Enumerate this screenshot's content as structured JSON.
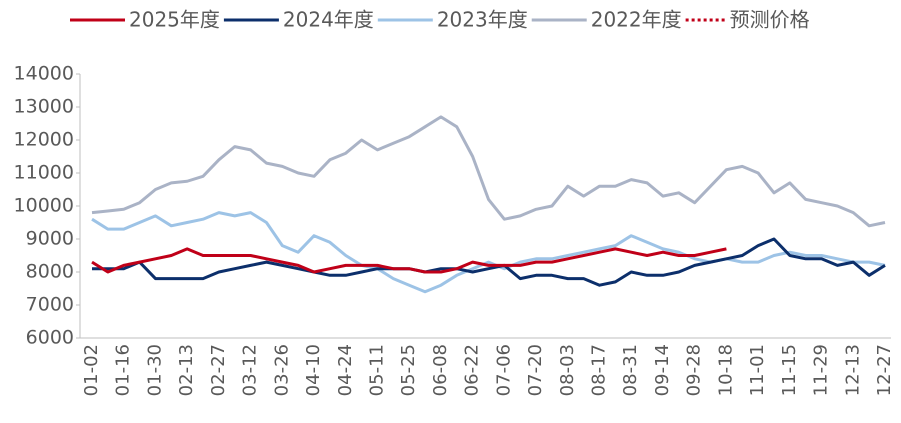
{
  "chart_data": {
    "type": "line",
    "categories": [
      "01-02",
      null,
      "01-16",
      null,
      "01-30",
      null,
      "02-13",
      null,
      "02-27",
      null,
      "03-12",
      null,
      "03-26",
      null,
      "04-10",
      null,
      "04-24",
      null,
      "05-11",
      null,
      "05-25",
      null,
      "06-08",
      null,
      "06-22",
      null,
      "07-06",
      null,
      "07-20",
      null,
      "08-03",
      null,
      "08-17",
      null,
      "08-31",
      null,
      "09-14",
      null,
      "09-28",
      null,
      "10-18",
      null,
      "11-01",
      null,
      "11-15",
      null,
      "11-29",
      null,
      "12-13",
      null,
      "12-27"
    ],
    "series": [
      {
        "name": "2025年度",
        "color": "#c00018",
        "style": "solid",
        "values": [
          8300,
          8000,
          8200,
          8300,
          8400,
          8500,
          8700,
          8500,
          8500,
          8500,
          8500,
          8400,
          8300,
          8200,
          8000,
          8100,
          8200,
          8200,
          8200,
          8100,
          8100,
          8000,
          8000,
          8100,
          8300,
          8200,
          8200,
          8200,
          8300,
          8300,
          8400,
          8500,
          8600,
          8700,
          8600,
          8500,
          8600,
          8500,
          8500,
          8600,
          8700,
          null,
          null,
          null,
          null,
          null,
          null,
          null,
          null,
          null,
          null
        ]
      },
      {
        "name": "2024年度",
        "color": "#0c2f6b",
        "style": "solid",
        "values": [
          8100,
          8100,
          8100,
          8300,
          7800,
          7800,
          7800,
          7800,
          8000,
          8100,
          8200,
          8300,
          8200,
          8100,
          8000,
          7900,
          7900,
          8000,
          8100,
          8100,
          8100,
          8000,
          8100,
          8100,
          8000,
          8100,
          8200,
          7800,
          7900,
          7900,
          7800,
          7800,
          7600,
          7700,
          8000,
          7900,
          7900,
          8000,
          8200,
          8300,
          8400,
          8500,
          8800,
          9000,
          8500,
          8400,
          8400,
          8200,
          8300,
          7900,
          8200
        ]
      },
      {
        "name": "2023年度",
        "color": "#9dc3e6",
        "style": "solid",
        "values": [
          9600,
          9300,
          9300,
          9500,
          9700,
          9400,
          9500,
          9600,
          9800,
          9700,
          9800,
          9500,
          8800,
          8600,
          9100,
          8900,
          8500,
          8200,
          8100,
          7800,
          7600,
          7400,
          7600,
          7900,
          8100,
          8300,
          8100,
          8300,
          8400,
          8400,
          8500,
          8600,
          8700,
          8800,
          9100,
          8900,
          8700,
          8600,
          8400,
          8300,
          8400,
          8300,
          8300,
          8500,
          8600,
          8500,
          8500,
          8400,
          8300,
          8300,
          8200
        ]
      },
      {
        "name": "2022年度",
        "color": "#aab3c6",
        "style": "solid",
        "values": [
          9800,
          9850,
          9900,
          10100,
          10500,
          10700,
          10750,
          10900,
          11400,
          11800,
          11700,
          11300,
          11200,
          11000,
          10900,
          11400,
          11600,
          12000,
          11700,
          11900,
          12100,
          12400,
          12700,
          12400,
          11500,
          10200,
          9600,
          9700,
          9900,
          10000,
          10600,
          10300,
          10600,
          10600,
          10800,
          10700,
          10300,
          10400,
          10100,
          10600,
          11100,
          11200,
          11000,
          10400,
          10700,
          10200,
          10100,
          10000,
          9800,
          9400,
          9500
        ]
      },
      {
        "name": "预测价格",
        "color": "#c00018",
        "style": "dotted",
        "values": [
          null,
          null,
          null,
          null,
          null,
          null,
          null,
          null,
          null,
          null,
          null,
          null,
          null,
          null,
          null,
          null,
          null,
          null,
          null,
          null,
          null,
          null,
          null,
          null,
          null,
          null,
          null,
          null,
          null,
          null,
          null,
          null,
          null,
          null,
          null,
          null,
          null,
          null,
          null,
          null,
          8700,
          null,
          null,
          null,
          null,
          null,
          null,
          null,
          null,
          null,
          null
        ]
      }
    ],
    "ylim": [
      6000,
      14000
    ],
    "yticks": [
      6000,
      7000,
      8000,
      9000,
      10000,
      11000,
      12000,
      13000,
      14000
    ],
    "grid": false
  }
}
